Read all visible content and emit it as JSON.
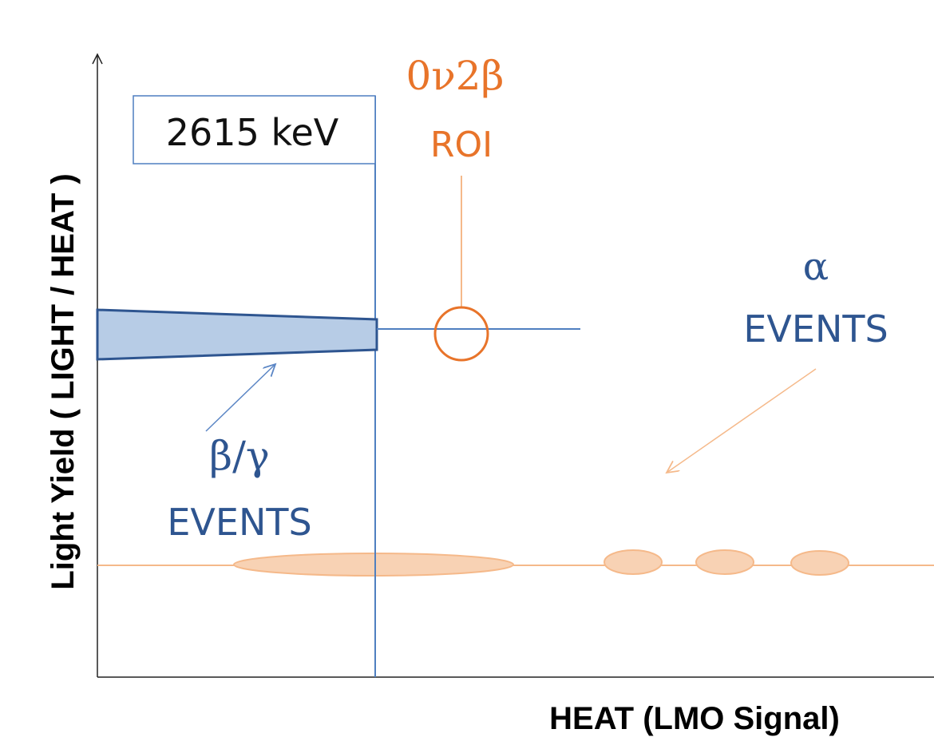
{
  "axes": {
    "y_label": "Light Yield ( LIGHT / HEAT )",
    "x_label": "HEAT (LMO Signal)"
  },
  "energy_box": {
    "label": "2615 keV"
  },
  "roi": {
    "title": "0ν2β",
    "label": "ROI"
  },
  "alpha_events": {
    "symbol": "α",
    "label": "EVENTS"
  },
  "beta_gamma_events": {
    "symbol": "β/γ",
    "label": "EVENTS"
  }
}
